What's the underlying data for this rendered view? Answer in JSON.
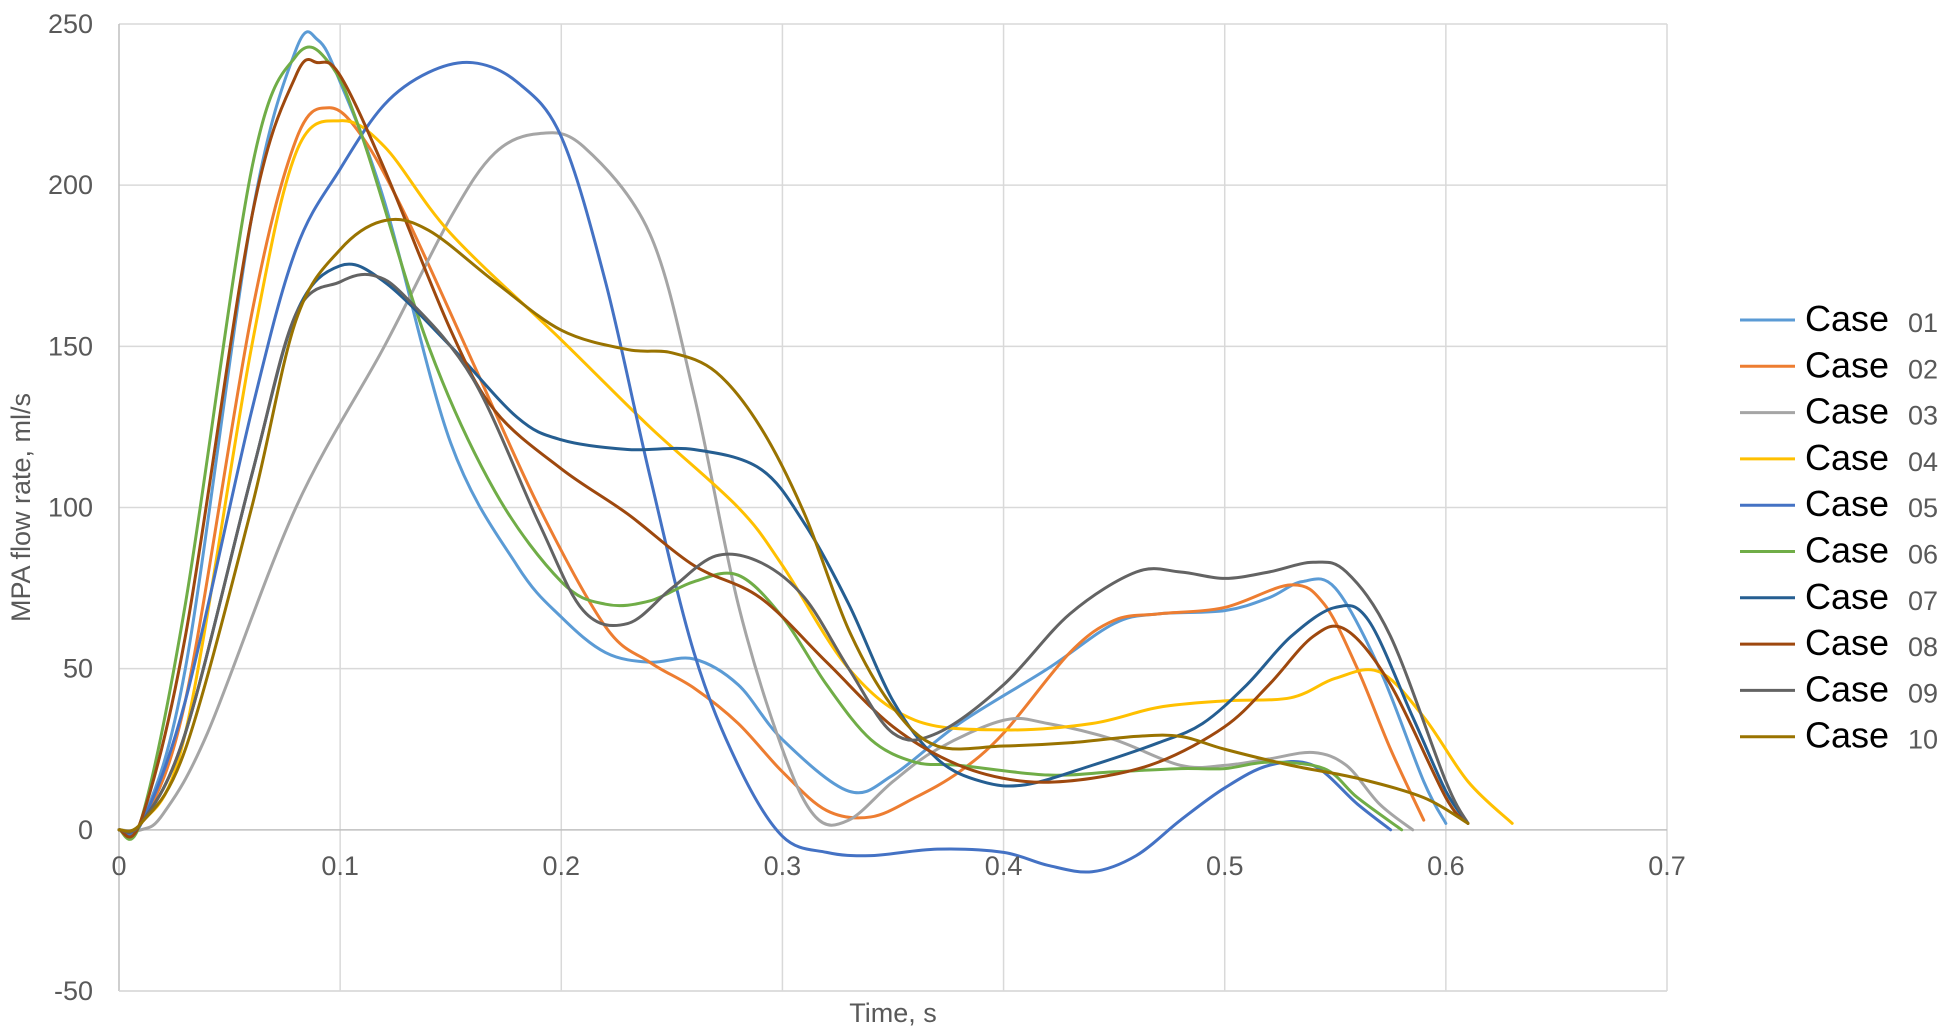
{
  "chart_data": {
    "type": "line",
    "xlabel": "Time, s",
    "ylabel": "MPA flow rate, ml/s",
    "xlim": [
      0,
      0.7
    ],
    "ylim": [
      -50,
      250
    ],
    "x_ticks": [
      0,
      0.1,
      0.2,
      0.3,
      0.4,
      0.5,
      0.6,
      0.7
    ],
    "x_tick_labels": [
      "0",
      "0.1",
      "0.2",
      "0.3",
      "0.4",
      "0.5",
      "0.6",
      "0.7"
    ],
    "y_ticks": [
      -50,
      0,
      50,
      100,
      150,
      200,
      250
    ],
    "y_tick_labels": [
      "-50",
      "0",
      "50",
      "100",
      "150",
      "200",
      "250"
    ],
    "grid": true,
    "legend_position": "right",
    "series": [
      {
        "name": "Case 01",
        "word": "Case",
        "num": "01",
        "color": "#5B9BD5",
        "points": [
          [
            0,
            0
          ],
          [
            0.01,
            2
          ],
          [
            0.03,
            50
          ],
          [
            0.06,
            190
          ],
          [
            0.08,
            242
          ],
          [
            0.09,
            245
          ],
          [
            0.1,
            232
          ],
          [
            0.12,
            195
          ],
          [
            0.15,
            120
          ],
          [
            0.18,
            82
          ],
          [
            0.2,
            66
          ],
          [
            0.22,
            55
          ],
          [
            0.24,
            52
          ],
          [
            0.26,
            53
          ],
          [
            0.28,
            45
          ],
          [
            0.3,
            28
          ],
          [
            0.33,
            12
          ],
          [
            0.35,
            17
          ],
          [
            0.38,
            33
          ],
          [
            0.42,
            50
          ],
          [
            0.45,
            64
          ],
          [
            0.47,
            67
          ],
          [
            0.5,
            68
          ],
          [
            0.52,
            72
          ],
          [
            0.535,
            77
          ],
          [
            0.55,
            75
          ],
          [
            0.57,
            50
          ],
          [
            0.59,
            15
          ],
          [
            0.6,
            2
          ]
        ]
      },
      {
        "name": "Case 02",
        "word": "Case",
        "num": "02",
        "color": "#ED7D31",
        "points": [
          [
            0,
            0
          ],
          [
            0.01,
            2
          ],
          [
            0.03,
            40
          ],
          [
            0.06,
            160
          ],
          [
            0.08,
            214
          ],
          [
            0.095,
            224
          ],
          [
            0.11,
            215
          ],
          [
            0.13,
            190
          ],
          [
            0.16,
            145
          ],
          [
            0.19,
            100
          ],
          [
            0.22,
            63
          ],
          [
            0.24,
            52
          ],
          [
            0.26,
            44
          ],
          [
            0.28,
            33
          ],
          [
            0.3,
            18
          ],
          [
            0.32,
            6
          ],
          [
            0.34,
            4
          ],
          [
            0.36,
            10
          ],
          [
            0.38,
            18
          ],
          [
            0.4,
            30
          ],
          [
            0.43,
            55
          ],
          [
            0.45,
            65
          ],
          [
            0.47,
            67
          ],
          [
            0.5,
            69
          ],
          [
            0.53,
            76
          ],
          [
            0.545,
            70
          ],
          [
            0.56,
            50
          ],
          [
            0.575,
            25
          ],
          [
            0.59,
            3
          ]
        ]
      },
      {
        "name": "Case 03",
        "word": "Case",
        "num": "03",
        "color": "#A5A5A5",
        "points": [
          [
            0,
            0
          ],
          [
            0.01,
            0
          ],
          [
            0.02,
            5
          ],
          [
            0.04,
            30
          ],
          [
            0.08,
            100
          ],
          [
            0.12,
            150
          ],
          [
            0.15,
            190
          ],
          [
            0.17,
            210
          ],
          [
            0.19,
            216
          ],
          [
            0.21,
            212
          ],
          [
            0.24,
            185
          ],
          [
            0.26,
            135
          ],
          [
            0.28,
            70
          ],
          [
            0.3,
            25
          ],
          [
            0.315,
            4
          ],
          [
            0.33,
            3
          ],
          [
            0.35,
            15
          ],
          [
            0.37,
            25
          ],
          [
            0.4,
            34
          ],
          [
            0.42,
            33
          ],
          [
            0.45,
            28
          ],
          [
            0.48,
            20
          ],
          [
            0.5,
            20
          ],
          [
            0.52,
            22
          ],
          [
            0.54,
            24
          ],
          [
            0.555,
            20
          ],
          [
            0.57,
            8
          ],
          [
            0.585,
            0
          ]
        ]
      },
      {
        "name": "Case 04",
        "word": "Case",
        "num": "04",
        "color": "#FFC000",
        "points": [
          [
            0,
            0
          ],
          [
            0.01,
            2
          ],
          [
            0.03,
            30
          ],
          [
            0.06,
            150
          ],
          [
            0.08,
            210
          ],
          [
            0.1,
            220
          ],
          [
            0.12,
            212
          ],
          [
            0.15,
            185
          ],
          [
            0.2,
            152
          ],
          [
            0.24,
            125
          ],
          [
            0.28,
            100
          ],
          [
            0.3,
            82
          ],
          [
            0.33,
            50
          ],
          [
            0.36,
            34
          ],
          [
            0.4,
            31
          ],
          [
            0.44,
            33
          ],
          [
            0.47,
            38
          ],
          [
            0.5,
            40
          ],
          [
            0.53,
            41
          ],
          [
            0.55,
            47
          ],
          [
            0.57,
            49
          ],
          [
            0.59,
            35
          ],
          [
            0.61,
            15
          ],
          [
            0.63,
            2
          ]
        ]
      },
      {
        "name": "Case 05",
        "word": "Case",
        "num": "05",
        "color": "#4472C4",
        "points": [
          [
            0,
            0
          ],
          [
            0.01,
            2
          ],
          [
            0.03,
            40
          ],
          [
            0.06,
            130
          ],
          [
            0.08,
            180
          ],
          [
            0.1,
            205
          ],
          [
            0.12,
            225
          ],
          [
            0.14,
            235
          ],
          [
            0.16,
            238
          ],
          [
            0.18,
            232
          ],
          [
            0.2,
            215
          ],
          [
            0.22,
            170
          ],
          [
            0.24,
            110
          ],
          [
            0.26,
            55
          ],
          [
            0.28,
            20
          ],
          [
            0.3,
            -2
          ],
          [
            0.32,
            -7
          ],
          [
            0.34,
            -8
          ],
          [
            0.37,
            -6
          ],
          [
            0.4,
            -7
          ],
          [
            0.42,
            -11
          ],
          [
            0.44,
            -13
          ],
          [
            0.46,
            -8
          ],
          [
            0.48,
            3
          ],
          [
            0.5,
            13
          ],
          [
            0.52,
            20
          ],
          [
            0.54,
            20
          ],
          [
            0.56,
            8
          ],
          [
            0.575,
            0
          ]
        ]
      },
      {
        "name": "Case 06",
        "word": "Case",
        "num": "06",
        "color": "#70AD47",
        "points": [
          [
            0,
            0
          ],
          [
            0.01,
            3
          ],
          [
            0.03,
            70
          ],
          [
            0.06,
            205
          ],
          [
            0.08,
            240
          ],
          [
            0.095,
            238
          ],
          [
            0.11,
            215
          ],
          [
            0.14,
            150
          ],
          [
            0.17,
            105
          ],
          [
            0.2,
            77
          ],
          [
            0.22,
            70
          ],
          [
            0.24,
            71
          ],
          [
            0.26,
            77
          ],
          [
            0.28,
            79
          ],
          [
            0.3,
            66
          ],
          [
            0.32,
            45
          ],
          [
            0.34,
            28
          ],
          [
            0.36,
            21
          ],
          [
            0.38,
            20
          ],
          [
            0.42,
            17
          ],
          [
            0.45,
            18
          ],
          [
            0.48,
            19
          ],
          [
            0.5,
            19
          ],
          [
            0.52,
            21
          ],
          [
            0.545,
            19
          ],
          [
            0.56,
            10
          ],
          [
            0.58,
            0
          ]
        ]
      },
      {
        "name": "Case 07",
        "word": "Case",
        "num": "07",
        "color": "#255E91",
        "points": [
          [
            0,
            0
          ],
          [
            0.01,
            2
          ],
          [
            0.03,
            30
          ],
          [
            0.06,
            110
          ],
          [
            0.08,
            160
          ],
          [
            0.1,
            175
          ],
          [
            0.12,
            170
          ],
          [
            0.15,
            150
          ],
          [
            0.18,
            128
          ],
          [
            0.2,
            121
          ],
          [
            0.23,
            118
          ],
          [
            0.26,
            118
          ],
          [
            0.29,
            112
          ],
          [
            0.31,
            95
          ],
          [
            0.33,
            70
          ],
          [
            0.35,
            40
          ],
          [
            0.37,
            22
          ],
          [
            0.39,
            15
          ],
          [
            0.41,
            14
          ],
          [
            0.44,
            20
          ],
          [
            0.47,
            27
          ],
          [
            0.49,
            33
          ],
          [
            0.51,
            45
          ],
          [
            0.53,
            60
          ],
          [
            0.55,
            69
          ],
          [
            0.565,
            65
          ],
          [
            0.585,
            35
          ],
          [
            0.6,
            12
          ],
          [
            0.61,
            2
          ]
        ]
      },
      {
        "name": "Case 08",
        "word": "Case",
        "num": "08",
        "color": "#9E480E",
        "points": [
          [
            0,
            0
          ],
          [
            0.01,
            3
          ],
          [
            0.03,
            60
          ],
          [
            0.06,
            190
          ],
          [
            0.08,
            234
          ],
          [
            0.09,
            238
          ],
          [
            0.1,
            234
          ],
          [
            0.12,
            205
          ],
          [
            0.15,
            155
          ],
          [
            0.17,
            130
          ],
          [
            0.2,
            112
          ],
          [
            0.23,
            98
          ],
          [
            0.26,
            82
          ],
          [
            0.29,
            72
          ],
          [
            0.32,
            52
          ],
          [
            0.35,
            32
          ],
          [
            0.38,
            20
          ],
          [
            0.41,
            15
          ],
          [
            0.44,
            16
          ],
          [
            0.47,
            21
          ],
          [
            0.5,
            32
          ],
          [
            0.52,
            45
          ],
          [
            0.54,
            60
          ],
          [
            0.555,
            62
          ],
          [
            0.575,
            45
          ],
          [
            0.6,
            10
          ],
          [
            0.61,
            2
          ]
        ]
      },
      {
        "name": "Case 09",
        "word": "Case",
        "num": "09",
        "color": "#636363",
        "points": [
          [
            0,
            0
          ],
          [
            0.01,
            2
          ],
          [
            0.03,
            30
          ],
          [
            0.06,
            110
          ],
          [
            0.08,
            160
          ],
          [
            0.1,
            170
          ],
          [
            0.115,
            172
          ],
          [
            0.13,
            165
          ],
          [
            0.16,
            140
          ],
          [
            0.19,
            95
          ],
          [
            0.21,
            68
          ],
          [
            0.23,
            64
          ],
          [
            0.25,
            75
          ],
          [
            0.27,
            85
          ],
          [
            0.29,
            83
          ],
          [
            0.31,
            72
          ],
          [
            0.33,
            50
          ],
          [
            0.35,
            30
          ],
          [
            0.37,
            30
          ],
          [
            0.4,
            45
          ],
          [
            0.43,
            67
          ],
          [
            0.46,
            80
          ],
          [
            0.48,
            80
          ],
          [
            0.5,
            78
          ],
          [
            0.52,
            80
          ],
          [
            0.54,
            83
          ],
          [
            0.555,
            80
          ],
          [
            0.575,
            60
          ],
          [
            0.6,
            15
          ],
          [
            0.61,
            2
          ]
        ]
      },
      {
        "name": "Case 10",
        "word": "Case",
        "num": "10",
        "color": "#997300",
        "points": [
          [
            0,
            0
          ],
          [
            0.01,
            2
          ],
          [
            0.03,
            25
          ],
          [
            0.06,
            100
          ],
          [
            0.08,
            158
          ],
          [
            0.1,
            180
          ],
          [
            0.12,
            189
          ],
          [
            0.14,
            186
          ],
          [
            0.17,
            170
          ],
          [
            0.2,
            155
          ],
          [
            0.23,
            149
          ],
          [
            0.25,
            148
          ],
          [
            0.27,
            142
          ],
          [
            0.29,
            125
          ],
          [
            0.31,
            98
          ],
          [
            0.33,
            62
          ],
          [
            0.35,
            38
          ],
          [
            0.37,
            26
          ],
          [
            0.4,
            26
          ],
          [
            0.43,
            27
          ],
          [
            0.46,
            29
          ],
          [
            0.48,
            29
          ],
          [
            0.5,
            25
          ],
          [
            0.53,
            20
          ],
          [
            0.56,
            16
          ],
          [
            0.59,
            10
          ],
          [
            0.61,
            2
          ]
        ]
      }
    ]
  }
}
